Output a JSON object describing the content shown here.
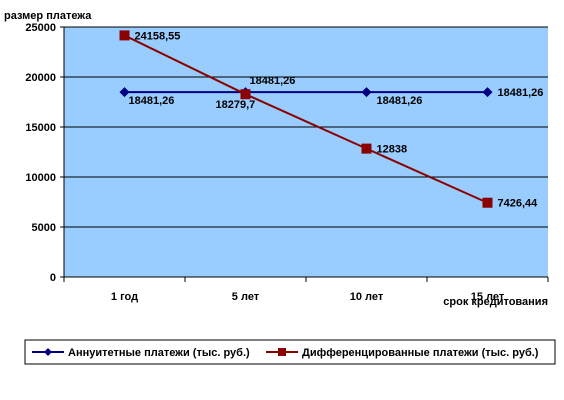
{
  "chart_data": {
    "type": "line",
    "title": "",
    "ylabel": "размер платежа",
    "xlabel": "срок кредитования",
    "categories": [
      "1 год",
      "5 лет",
      "10 лет",
      "15 лет"
    ],
    "ylim": [
      0,
      25000
    ],
    "yticks": [
      "0",
      "5000",
      "10000",
      "15000",
      "20000",
      "25000"
    ],
    "grid": true,
    "legend_position": "bottom",
    "series": [
      {
        "name": "Аннуитетные платежи (тыс. руб.)",
        "values": [
          18481.26,
          18481.26,
          18481.26,
          18481.26
        ],
        "labels": [
          "18481,26",
          "18481,26",
          "18481,26",
          "18481,26"
        ],
        "color": "#000080",
        "marker": "diamond"
      },
      {
        "name": "Дифференцированные платежи  (тыс. руб.)",
        "values": [
          24158.55,
          18279.7,
          12838,
          7426.44
        ],
        "labels": [
          "24158,55",
          "18279,7",
          "12838",
          "7426,44"
        ],
        "color": "#8B0000",
        "marker": "square"
      }
    ],
    "plot_background": "#99CCFF"
  }
}
